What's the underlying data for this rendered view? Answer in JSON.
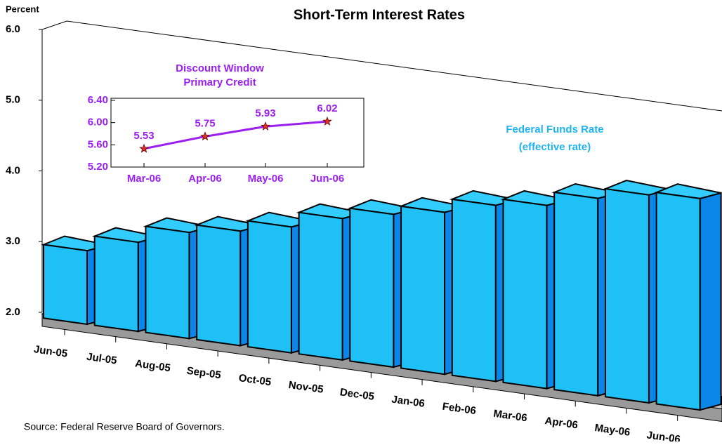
{
  "chart_data": [
    {
      "type": "bar3d",
      "title": "Short-Term Interest Rates",
      "y_label": "Percent",
      "categories": [
        "Jun-05",
        "Jul-05",
        "Aug-05",
        "Sep-05",
        "Oct-05",
        "Nov-05",
        "Dec-05",
        "Jan-06",
        "Feb-06",
        "Mar-06",
        "Apr-06",
        "May-06",
        "Jun-06"
      ],
      "values": [
        3.04,
        3.26,
        3.5,
        3.62,
        3.78,
        4.0,
        4.16,
        4.29,
        4.49,
        4.59,
        4.79,
        4.94,
        4.99
      ],
      "color": "#1ec0f5",
      "ylim": [
        2,
        6
      ],
      "yticks": [
        {
          "value": 2,
          "label": "2.0"
        },
        {
          "value": 3,
          "label": "3.0"
        },
        {
          "value": 4,
          "label": "4.0"
        },
        {
          "value": 5,
          "label": "5.0"
        },
        {
          "value": 6,
          "label": "6.0"
        }
      ],
      "annotations": [
        "Federal Funds Rate",
        "(effective rate)"
      ],
      "annotation_color": "#1fb4ee",
      "source": "Source: Federal Reserve Board of Governors."
    },
    {
      "type": "line",
      "title": [
        "Discount Window",
        "Primary Credit"
      ],
      "categories": [
        "Mar-06",
        "Apr-06",
        "May-06",
        "Jun-06"
      ],
      "values": [
        5.53,
        5.75,
        5.93,
        6.02
      ],
      "color": "#9b20f0",
      "marker_color": "#e0302a",
      "ylim": [
        5.2,
        6.4
      ],
      "yticks": [
        {
          "value": 5.2,
          "label": "5.20"
        },
        {
          "value": 5.6,
          "label": "5.60"
        },
        {
          "value": 6.0,
          "label": "6.00"
        },
        {
          "value": 6.4,
          "label": "6.40"
        }
      ]
    }
  ]
}
